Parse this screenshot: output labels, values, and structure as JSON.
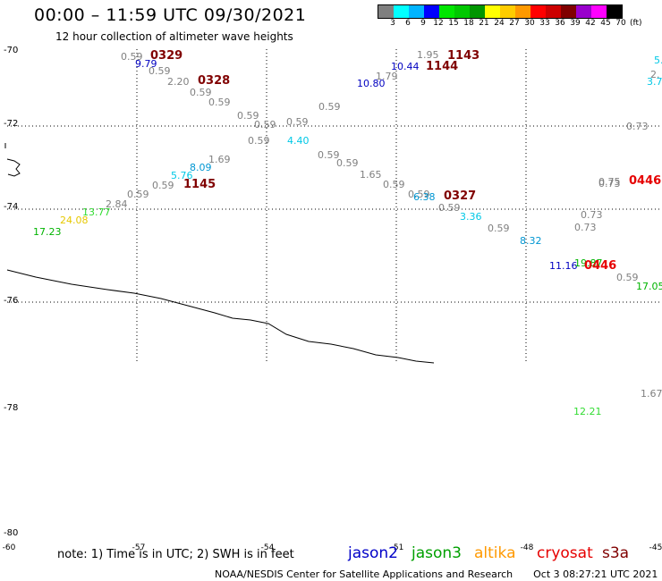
{
  "header": {
    "title": "00:00 – 11:59 UTC 09/30/2021",
    "subtitle": "12 hour collection of altimeter wave heights"
  },
  "legend": {
    "unit": "(ft)",
    "levels": [
      "3",
      "6",
      "9",
      "12",
      "15",
      "18",
      "21",
      "24",
      "27",
      "30",
      "33",
      "36",
      "39",
      "42",
      "45",
      "70"
    ],
    "colors": [
      "#7f7f7f",
      "#00ffff",
      "#00b4ff",
      "#0000ff",
      "#00e600",
      "#00c800",
      "#009600",
      "#ffff00",
      "#ffcc00",
      "#ff9900",
      "#ff0000",
      "#cc0000",
      "#800000",
      "#9900cc",
      "#ff00ff",
      "#000000"
    ]
  },
  "axes": {
    "lat_labels": [
      "-70",
      "-72",
      "-74",
      "-76",
      "-78",
      "-80"
    ],
    "lon_labels": [
      "-60",
      "-57",
      "-54",
      "-51",
      "-48",
      "-45"
    ]
  },
  "observations": [
    {
      "text": "0.59",
      "color": "#808080"
    },
    {
      "text": "9.79",
      "color": "#0000c0"
    },
    {
      "text": "0.59",
      "color": "#808080"
    },
    {
      "text": "2.20",
      "color": "#808080"
    },
    {
      "text": "0.59",
      "color": "#808080"
    },
    {
      "text": "0.59",
      "color": "#808080"
    },
    {
      "text": "0.59",
      "color": "#808080"
    },
    {
      "text": "0.59",
      "color": "#808080"
    },
    {
      "text": "0.59",
      "color": "#808080"
    },
    {
      "text": "0.59",
      "color": "#808080"
    },
    {
      "text": "0.59",
      "color": "#808080"
    },
    {
      "text": "4.40",
      "color": "#00c8e6"
    },
    {
      "text": "0.59",
      "color": "#808080"
    },
    {
      "text": "0.59",
      "color": "#808080"
    },
    {
      "text": "1.65",
      "color": "#808080"
    },
    {
      "text": "0.59",
      "color": "#808080"
    },
    {
      "text": "1.69",
      "color": "#808080"
    },
    {
      "text": "8.09",
      "color": "#0096d2"
    },
    {
      "text": "5.76",
      "color": "#00c8e6"
    },
    {
      "text": "0.59",
      "color": "#808080"
    },
    {
      "text": "0.59",
      "color": "#808080"
    },
    {
      "text": "2.84",
      "color": "#808080"
    },
    {
      "text": "13.77",
      "color": "#32dc32"
    },
    {
      "text": "24.08",
      "color": "#e6c800"
    },
    {
      "text": "17.23",
      "color": "#00b400"
    },
    {
      "text": "1.95",
      "color": "#808080"
    },
    {
      "text": "10.44",
      "color": "#0000c0"
    },
    {
      "text": "1.79",
      "color": "#808080"
    },
    {
      "text": "10.80",
      "color": "#0000c0"
    },
    {
      "text": "0.59",
      "color": "#808080"
    },
    {
      "text": "6.38",
      "color": "#0096d2"
    },
    {
      "text": "0.59",
      "color": "#808080"
    },
    {
      "text": "3.36",
      "color": "#00c8e6"
    },
    {
      "text": "0.59",
      "color": "#808080"
    },
    {
      "text": "8.32",
      "color": "#0096d2"
    },
    {
      "text": "0.73",
      "color": "#808080"
    },
    {
      "text": "0.75",
      "color": "#808080"
    },
    {
      "text": "0.73",
      "color": "#808080"
    },
    {
      "text": "0.73",
      "color": "#808080"
    },
    {
      "text": "0.73",
      "color": "#808080"
    },
    {
      "text": "11.16",
      "color": "#0000c0"
    },
    {
      "text": "19.87",
      "color": "#00b400"
    },
    {
      "text": "0.59",
      "color": "#808080"
    },
    {
      "text": "17.05",
      "color": "#00b400"
    },
    {
      "text": "1.67",
      "color": "#808080"
    },
    {
      "text": "12.21",
      "color": "#32dc32"
    },
    {
      "text": "5.",
      "color": "#00c8e6"
    },
    {
      "text": "3.7",
      "color": "#00c8e6"
    },
    {
      "text": "2.",
      "color": "#808080"
    }
  ],
  "orbits": [
    {
      "text": "0329",
      "color": "#800000"
    },
    {
      "text": "0328",
      "color": "#800000"
    },
    {
      "text": "1145",
      "color": "#800000"
    },
    {
      "text": "1143",
      "color": "#800000"
    },
    {
      "text": "1144",
      "color": "#800000"
    },
    {
      "text": "0327",
      "color": "#800000"
    },
    {
      "text": "0446",
      "color": "#e60000"
    },
    {
      "text": "0446",
      "color": "#e60000"
    }
  ],
  "footer": {
    "note": "note: 1) Time is in UTC; 2) SWH is in feet",
    "satellites": [
      {
        "name": "jason2",
        "color": "#0000c8"
      },
      {
        "name": "jason3",
        "color": "#00a000"
      },
      {
        "name": "altika",
        "color": "#ff9900"
      },
      {
        "name": "cryosat",
        "color": "#e60000"
      },
      {
        "name": "s3a",
        "color": "#800000"
      }
    ],
    "credit": "NOAA/NESDIS Center for Satellite Applications and Research",
    "timestamp": "Oct  3 08:27:21 UTC 2021"
  }
}
